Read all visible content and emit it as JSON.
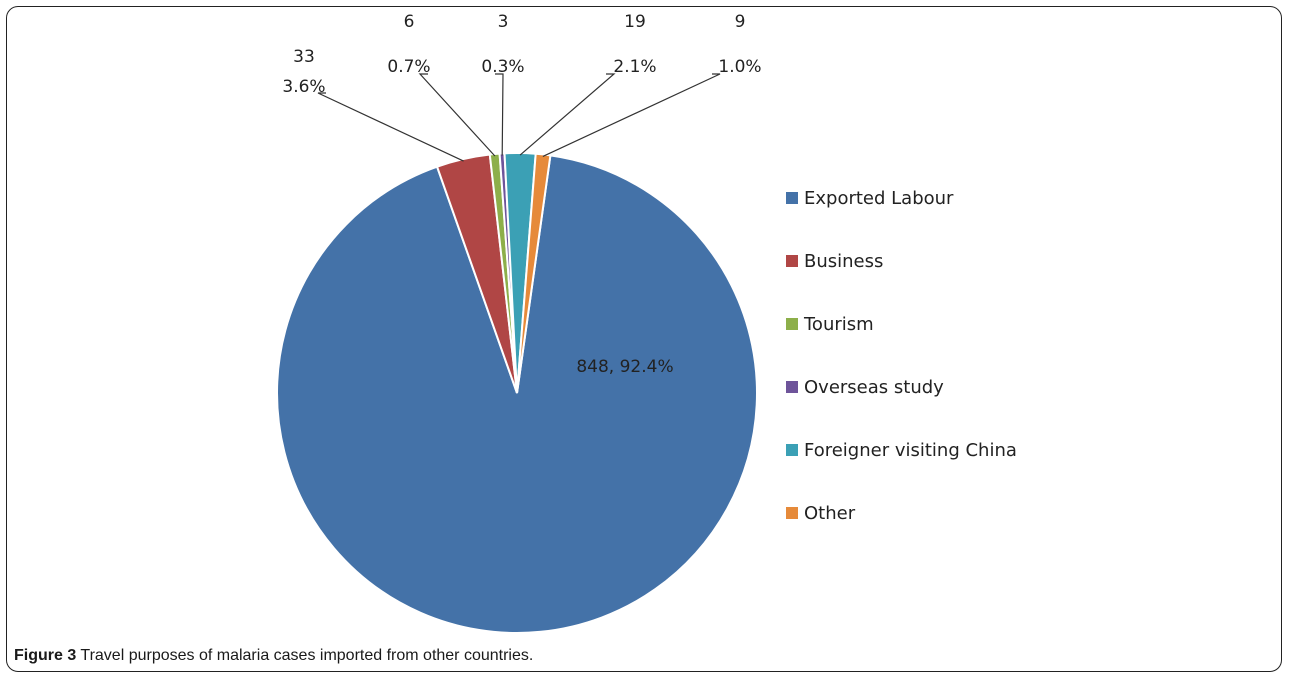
{
  "chart_data": {
    "type": "pie",
    "title": "",
    "start_angle_deg": 8,
    "slices": [
      {
        "name": "Exported Labour",
        "value": 848,
        "percent": "92.4%",
        "color": "#4472A8"
      },
      {
        "name": "Business",
        "value": 33,
        "percent": "3.6%",
        "color": "#B04645"
      },
      {
        "name": "Tourism",
        "value": 6,
        "percent": "0.7%",
        "color": "#8DAF4A"
      },
      {
        "name": "Overseas study",
        "value": 3,
        "percent": "0.3%",
        "color": "#6E549A"
      },
      {
        "name": "Foreigner visiting China",
        "value": 19,
        "percent": "2.1%",
        "color": "#3BA0B5"
      },
      {
        "name": "Other",
        "value": 9,
        "percent": "1.0%",
        "color": "#E68A3A"
      }
    ],
    "legend_position": "right"
  },
  "caption": {
    "figure_number": "Figure 3",
    "text": " Travel purposes of malaria cases imported from other countries."
  }
}
